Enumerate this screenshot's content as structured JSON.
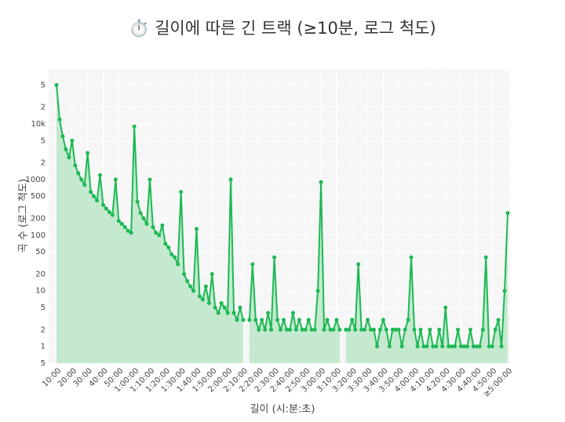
{
  "chart_data": {
    "type": "line",
    "title": "⏱️ 길이에 따른 긴 트랙 (≥10분, 로그 척도)",
    "x_label": "길이 (시:분:초)",
    "y_label": "곡 수 (로그 척도)",
    "log_y": true,
    "grid": true,
    "xlim": [
      10,
      300
    ],
    "ylim": [
      0.5,
      97000
    ],
    "xticks": [
      {
        "value": 10,
        "label": "10:00"
      },
      {
        "value": 20,
        "label": "20:00"
      },
      {
        "value": 30,
        "label": "30:00"
      },
      {
        "value": 40,
        "label": "40:00"
      },
      {
        "value": 50,
        "label": "50:00"
      },
      {
        "value": 60,
        "label": "1:00:00"
      },
      {
        "value": 70,
        "label": "1:10:00"
      },
      {
        "value": 80,
        "label": "1:20:00"
      },
      {
        "value": 90,
        "label": "1:30:00"
      },
      {
        "value": 100,
        "label": "1:40:00"
      },
      {
        "value": 110,
        "label": "1:50:00"
      },
      {
        "value": 120,
        "label": "2:00:00"
      },
      {
        "value": 130,
        "label": "2:10:00"
      },
      {
        "value": 140,
        "label": "2:20:00"
      },
      {
        "value": 150,
        "label": "2:30:00"
      },
      {
        "value": 160,
        "label": "2:40:00"
      },
      {
        "value": 170,
        "label": "2:50:00"
      },
      {
        "value": 180,
        "label": "3:00:00"
      },
      {
        "value": 190,
        "label": "3:10:00"
      },
      {
        "value": 200,
        "label": "3:20:00"
      },
      {
        "value": 210,
        "label": "3:30:00"
      },
      {
        "value": 220,
        "label": "3:40:00"
      },
      {
        "value": 230,
        "label": "3:50:00"
      },
      {
        "value": 240,
        "label": "4:00:00"
      },
      {
        "value": 250,
        "label": "4:10:00"
      },
      {
        "value": 260,
        "label": "4:20:00"
      },
      {
        "value": 270,
        "label": "4:30:00"
      },
      {
        "value": 280,
        "label": "4:40:00"
      },
      {
        "value": 290,
        "label": "4:50:00"
      },
      {
        "value": 300,
        "label": "≥5:00:00"
      }
    ],
    "yticks": [
      {
        "value": 0.5,
        "label": "5"
      },
      1,
      2,
      5,
      10,
      20,
      50,
      100,
      200,
      500,
      1000,
      {
        "value": 2000,
        "label": "2"
      },
      {
        "value": 5000,
        "label": "5"
      },
      {
        "value": 10000,
        "label": "10k"
      },
      {
        "value": 20000,
        "label": "2"
      },
      {
        "value": 50000,
        "label": "5"
      }
    ],
    "x": [
      10,
      12,
      14,
      16,
      18,
      20,
      22,
      24,
      26,
      28,
      30,
      32,
      34,
      36,
      38,
      40,
      42,
      44,
      46,
      48,
      50,
      52,
      54,
      56,
      58,
      60,
      62,
      64,
      66,
      68,
      70,
      72,
      74,
      76,
      78,
      80,
      82,
      84,
      86,
      88,
      90,
      92,
      94,
      96,
      98,
      100,
      102,
      104,
      106,
      108,
      110,
      112,
      114,
      116,
      118,
      120,
      122,
      124,
      126,
      128,
      130,
      132,
      134,
      136,
      138,
      140,
      142,
      144,
      146,
      148,
      150,
      152,
      154,
      156,
      158,
      160,
      162,
      164,
      166,
      168,
      170,
      172,
      174,
      176,
      178,
      180,
      182,
      184,
      186,
      188,
      190,
      192,
      194,
      196,
      198,
      200,
      202,
      204,
      206,
      208,
      210,
      212,
      214,
      216,
      218,
      220,
      222,
      224,
      226,
      228,
      230,
      232,
      234,
      236,
      238,
      240,
      242,
      244,
      246,
      248,
      250,
      252,
      254,
      256,
      258,
      260,
      262,
      264,
      266,
      268,
      270,
      272,
      274,
      276,
      278,
      280,
      282,
      284,
      286,
      288,
      290,
      292,
      294,
      296,
      298,
      300
    ],
    "series": [
      {
        "color": "#1db954",
        "fill": "#bfe8cb",
        "values": [
          50000,
          12000,
          6000,
          3500,
          2500,
          5000,
          1800,
          1300,
          1000,
          800,
          3000,
          600,
          500,
          420,
          1200,
          350,
          300,
          260,
          230,
          1000,
          180,
          160,
          140,
          120,
          110,
          9000,
          400,
          250,
          200,
          160,
          1000,
          140,
          110,
          100,
          150,
          70,
          60,
          45,
          40,
          30,
          600,
          20,
          15,
          12,
          10,
          130,
          8,
          7,
          12,
          6,
          20,
          5,
          4,
          6,
          5,
          4,
          1000,
          4,
          3,
          5,
          3,
          null,
          3,
          30,
          3,
          2,
          3,
          2,
          4,
          2,
          40,
          3,
          2,
          3,
          2,
          2,
          4,
          2,
          3,
          2,
          2,
          3,
          2,
          2,
          10,
          900,
          2,
          3,
          2,
          2,
          3,
          2,
          null,
          2,
          2,
          3,
          2,
          30,
          2,
          2,
          3,
          2,
          2,
          1,
          2,
          3,
          2,
          1,
          2,
          2,
          2,
          1,
          2,
          3,
          40,
          2,
          1,
          2,
          1,
          1,
          2,
          1,
          1,
          2,
          1,
          5,
          1,
          1,
          1,
          2,
          1,
          1,
          1,
          2,
          1,
          1,
          1,
          2,
          40,
          1,
          1,
          2,
          3,
          1,
          10,
          250
        ]
      }
    ]
  }
}
